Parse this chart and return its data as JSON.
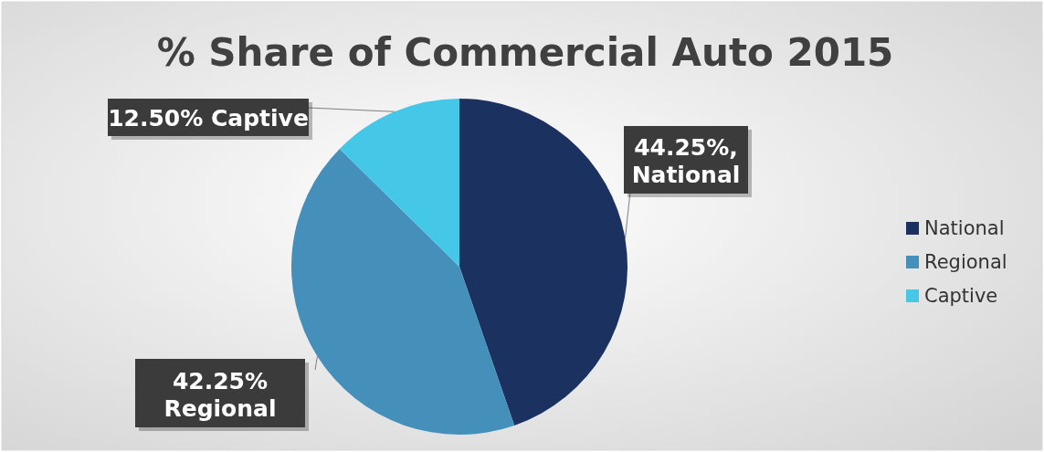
{
  "chart_data": {
    "type": "pie",
    "title": "% Share of Commercial Auto 2015",
    "categories": [
      "National",
      "Regional",
      "Captive"
    ],
    "values": [
      44.25,
      42.25,
      12.5
    ],
    "colors": [
      "#1b3260",
      "#4590bb",
      "#45c8e8"
    ],
    "value_labels": [
      "44.25%, National",
      "42.25% Regional",
      "12.50% Captive"
    ],
    "legend": "right"
  }
}
